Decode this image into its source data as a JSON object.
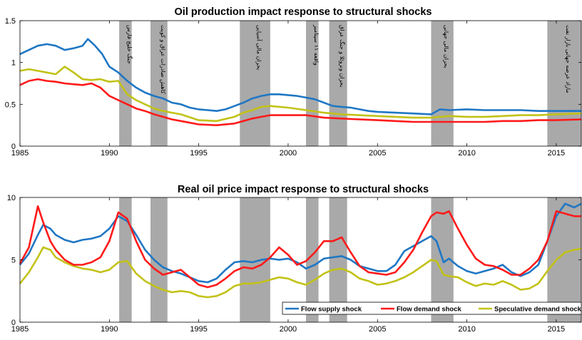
{
  "colors": {
    "flow_supply": "#1f77c4",
    "flow_demand": "#ff1a1a",
    "speculative": "#c2c217",
    "shade": "#a9a9a9"
  },
  "events": [
    {
      "start": 1990.55,
      "end": 1991.25,
      "label": "جنگ خلیج فارس"
    },
    {
      "start": 1992.3,
      "end": 1993.25,
      "label": "کاهش صادرات عراق و کویت"
    },
    {
      "start": 1997.3,
      "end": 1999.0,
      "label": "بحران مالی آسیایی"
    },
    {
      "start": 2001.0,
      "end": 2001.7,
      "label": "واقعه ۱۱ سپتامبر"
    },
    {
      "start": 2002.3,
      "end": 2003.3,
      "label": "بحران ونزوئلا و جنگ عراق"
    },
    {
      "start": 2008.0,
      "end": 2009.25,
      "label": "بحران مالی جهانی"
    },
    {
      "start": 2014.5,
      "end": 2016.4,
      "label": "مازاد عرضه جهانی بازار نفت"
    }
  ],
  "legend": {
    "flow_supply": "Flow supply shock",
    "flow_demand": "Flow demand shock",
    "speculative": "Speculative demand shock"
  },
  "chart_data": [
    {
      "type": "line",
      "title": "Oil production impact response to structural shocks",
      "xlim": [
        1985,
        2016.4
      ],
      "ylim": [
        0,
        1.5
      ],
      "xticks": [
        "1985",
        "1990",
        "1995",
        "2000",
        "2005",
        "2010",
        "2015"
      ],
      "yticks": [
        "0",
        "0.5",
        "1",
        "1.5"
      ],
      "series": [
        {
          "key": "flow_supply",
          "x": [
            1985,
            1985.5,
            1986,
            1986.5,
            1987,
            1987.5,
            1988,
            1988.5,
            1988.8,
            1989.2,
            1989.6,
            1990,
            1990.5,
            1991,
            1991.5,
            1992,
            1992.5,
            1993,
            1993.5,
            1994,
            1994.5,
            1995,
            1995.5,
            1996,
            1996.5,
            1997,
            1997.5,
            1998,
            1998.5,
            1999,
            1999.5,
            2000,
            2000.5,
            2001,
            2001.5,
            2002,
            2002.5,
            2003,
            2003.5,
            2004,
            2004.5,
            2005,
            2006,
            2007,
            2008,
            2008.5,
            2009,
            2010,
            2011,
            2012,
            2013,
            2014,
            2015,
            2016.4
          ],
          "y": [
            1.1,
            1.15,
            1.2,
            1.22,
            1.2,
            1.15,
            1.17,
            1.2,
            1.28,
            1.2,
            1.1,
            0.95,
            0.88,
            0.78,
            0.7,
            0.64,
            0.6,
            0.57,
            0.52,
            0.5,
            0.46,
            0.44,
            0.43,
            0.42,
            0.44,
            0.48,
            0.52,
            0.57,
            0.6,
            0.62,
            0.62,
            0.61,
            0.6,
            0.58,
            0.56,
            0.52,
            0.48,
            0.47,
            0.46,
            0.44,
            0.42,
            0.41,
            0.4,
            0.39,
            0.38,
            0.44,
            0.43,
            0.44,
            0.43,
            0.43,
            0.43,
            0.42,
            0.42,
            0.42
          ]
        },
        {
          "key": "speculative",
          "x": [
            1985,
            1985.5,
            1986,
            1986.5,
            1987,
            1987.5,
            1988,
            1988.5,
            1989,
            1989.5,
            1990,
            1990.5,
            1991,
            1991.5,
            1992,
            1992.5,
            1993,
            1993.5,
            1994,
            1995,
            1996,
            1997,
            1997.5,
            1998,
            1998.5,
            1999,
            2000,
            2001,
            2002,
            2003,
            2004,
            2005,
            2006,
            2007,
            2008,
            2009,
            2010,
            2011,
            2012,
            2013,
            2014,
            2015,
            2016.4
          ],
          "y": [
            0.9,
            0.92,
            0.9,
            0.88,
            0.86,
            0.95,
            0.88,
            0.8,
            0.79,
            0.8,
            0.77,
            0.78,
            0.62,
            0.55,
            0.5,
            0.45,
            0.42,
            0.4,
            0.38,
            0.31,
            0.3,
            0.35,
            0.4,
            0.43,
            0.47,
            0.48,
            0.46,
            0.43,
            0.4,
            0.38,
            0.37,
            0.36,
            0.35,
            0.34,
            0.34,
            0.36,
            0.35,
            0.35,
            0.36,
            0.37,
            0.37,
            0.38,
            0.39
          ]
        },
        {
          "key": "flow_demand",
          "x": [
            1985,
            1985.5,
            1986,
            1986.5,
            1987,
            1987.5,
            1988,
            1988.5,
            1989,
            1989.5,
            1990,
            1990.5,
            1991,
            1991.5,
            1992,
            1992.5,
            1993,
            1993.5,
            1994,
            1995,
            1996,
            1997,
            1997.5,
            1998,
            1998.5,
            1999,
            2000,
            2001,
            2002,
            2003,
            2004,
            2005,
            2006,
            2007,
            2008,
            2009,
            2010,
            2011,
            2012,
            2013,
            2014,
            2015,
            2016.4
          ],
          "y": [
            0.73,
            0.78,
            0.8,
            0.78,
            0.77,
            0.75,
            0.74,
            0.73,
            0.75,
            0.7,
            0.6,
            0.55,
            0.5,
            0.45,
            0.42,
            0.38,
            0.35,
            0.32,
            0.3,
            0.26,
            0.25,
            0.27,
            0.3,
            0.33,
            0.35,
            0.37,
            0.37,
            0.37,
            0.34,
            0.33,
            0.32,
            0.31,
            0.3,
            0.29,
            0.29,
            0.29,
            0.29,
            0.29,
            0.3,
            0.3,
            0.31,
            0.31,
            0.32
          ]
        }
      ]
    },
    {
      "type": "line",
      "title": "Real oil price impact response to structural shocks",
      "xlim": [
        1985,
        2016.4
      ],
      "ylim": [
        0,
        10
      ],
      "xticks": [
        "1985",
        "1990",
        "1995",
        "2000",
        "2005",
        "2010",
        "2015"
      ],
      "yticks": [
        "0",
        "5",
        "10"
      ],
      "series": [
        {
          "key": "speculative",
          "x": [
            1985,
            1985.5,
            1986,
            1986.3,
            1986.7,
            1987,
            1987.5,
            1988,
            1988.5,
            1989,
            1989.5,
            1990,
            1990.5,
            1991,
            1991.5,
            1992,
            1992.5,
            1993,
            1993.5,
            1994,
            1994.5,
            1995,
            1995.5,
            1996,
            1996.5,
            1997,
            1997.5,
            1998,
            1998.5,
            1999,
            1999.5,
            2000,
            2000.5,
            2001,
            2001.5,
            2002,
            2002.5,
            2003,
            2003.5,
            2004,
            2004.5,
            2005,
            2005.5,
            2006,
            2006.5,
            2007,
            2007.5,
            2008,
            2008.3,
            2008.7,
            2009,
            2009.5,
            2010,
            2010.5,
            2011,
            2011.5,
            2012,
            2012.5,
            2013,
            2013.5,
            2014,
            2014.5,
            2015,
            2015.5,
            2016,
            2016.4
          ],
          "y": [
            3.1,
            4.0,
            5.2,
            6.0,
            5.8,
            5.2,
            4.8,
            4.5,
            4.3,
            4.2,
            4.0,
            4.2,
            4.8,
            4.9,
            3.9,
            3.3,
            2.9,
            2.6,
            2.4,
            2.5,
            2.4,
            2.1,
            2.0,
            2.1,
            2.4,
            2.9,
            3.1,
            3.1,
            3.2,
            3.4,
            3.6,
            3.5,
            3.2,
            3.0,
            3.4,
            3.9,
            4.2,
            4.3,
            4.0,
            3.5,
            3.3,
            3.0,
            3.1,
            3.3,
            3.6,
            4.0,
            4.5,
            5.0,
            4.9,
            3.8,
            3.7,
            3.6,
            3.2,
            2.9,
            3.1,
            3.0,
            3.3,
            3.0,
            2.6,
            2.7,
            3.1,
            4.1,
            5.0,
            5.6,
            5.8,
            5.9
          ]
        },
        {
          "key": "flow_supply",
          "x": [
            1985,
            1985.5,
            1986,
            1986.3,
            1986.7,
            1987,
            1987.5,
            1988,
            1988.5,
            1989,
            1989.5,
            1990,
            1990.5,
            1991,
            1991.5,
            1992,
            1992.5,
            1993,
            1993.5,
            1994,
            1994.5,
            1995,
            1995.5,
            1996,
            1996.5,
            1997,
            1997.5,
            1998,
            1998.5,
            1999,
            1999.5,
            2000,
            2000.5,
            2001,
            2001.5,
            2002,
            2002.5,
            2003,
            2003.5,
            2004,
            2004.5,
            2005,
            2005.5,
            2006,
            2006.5,
            2007,
            2007.5,
            2008,
            2008.3,
            2008.7,
            2009,
            2009.5,
            2010,
            2010.5,
            2011,
            2011.5,
            2012,
            2012.5,
            2013,
            2013.5,
            2014,
            2014.5,
            2015,
            2015.5,
            2016,
            2016.4
          ],
          "y": [
            4.6,
            5.5,
            7.0,
            7.8,
            7.5,
            7.0,
            6.6,
            6.4,
            6.6,
            6.7,
            6.9,
            7.5,
            8.5,
            8.1,
            7.0,
            5.8,
            5.0,
            4.4,
            4.1,
            3.9,
            3.6,
            3.3,
            3.2,
            3.5,
            4.2,
            4.8,
            4.9,
            4.8,
            5.0,
            5.1,
            5.0,
            5.1,
            4.8,
            4.3,
            4.6,
            5.1,
            5.2,
            5.3,
            5.0,
            4.5,
            4.3,
            4.1,
            4.1,
            4.6,
            5.7,
            6.1,
            6.5,
            6.9,
            6.5,
            4.8,
            5.1,
            4.5,
            4.1,
            3.9,
            4.1,
            4.3,
            4.6,
            4.0,
            3.7,
            4.0,
            4.6,
            6.5,
            8.5,
            9.5,
            9.2,
            9.5
          ]
        },
        {
          "key": "flow_demand",
          "x": [
            1985,
            1985.5,
            1986,
            1986.3,
            1986.7,
            1987,
            1987.5,
            1988,
            1988.5,
            1989,
            1989.5,
            1990,
            1990.5,
            1991,
            1991.5,
            1992,
            1992.5,
            1993,
            1993.5,
            1994,
            1994.5,
            1995,
            1995.5,
            1996,
            1996.5,
            1997,
            1997.5,
            1998,
            1998.5,
            1999,
            1999.5,
            2000,
            2000.5,
            2001,
            2001.5,
            2002,
            2002.5,
            2003,
            2003.5,
            2004,
            2004.5,
            2005,
            2005.5,
            2006,
            2006.5,
            2007,
            2007.5,
            2008,
            2008.3,
            2008.7,
            2009,
            2009.5,
            2010,
            2010.5,
            2011,
            2011.5,
            2012,
            2012.5,
            2013,
            2013.5,
            2014,
            2014.5,
            2015,
            2015.5,
            2016,
            2016.4
          ],
          "y": [
            4.7,
            6.0,
            9.3,
            8.0,
            6.5,
            5.8,
            5.0,
            4.6,
            4.6,
            4.8,
            5.2,
            6.5,
            8.8,
            8.3,
            6.5,
            5.0,
            4.3,
            3.8,
            4.0,
            4.2,
            3.6,
            3.0,
            2.8,
            3.0,
            3.5,
            4.1,
            4.4,
            4.3,
            4.6,
            5.2,
            6.0,
            5.4,
            4.6,
            4.9,
            5.6,
            6.5,
            6.5,
            6.8,
            5.6,
            4.5,
            4.0,
            3.9,
            3.8,
            4.0,
            4.8,
            5.8,
            7.2,
            8.5,
            8.8,
            8.7,
            8.9,
            7.5,
            6.2,
            5.1,
            4.6,
            4.5,
            4.2,
            3.8,
            3.8,
            4.3,
            5.0,
            6.5,
            8.9,
            8.7,
            8.5,
            8.5
          ]
        }
      ]
    }
  ]
}
